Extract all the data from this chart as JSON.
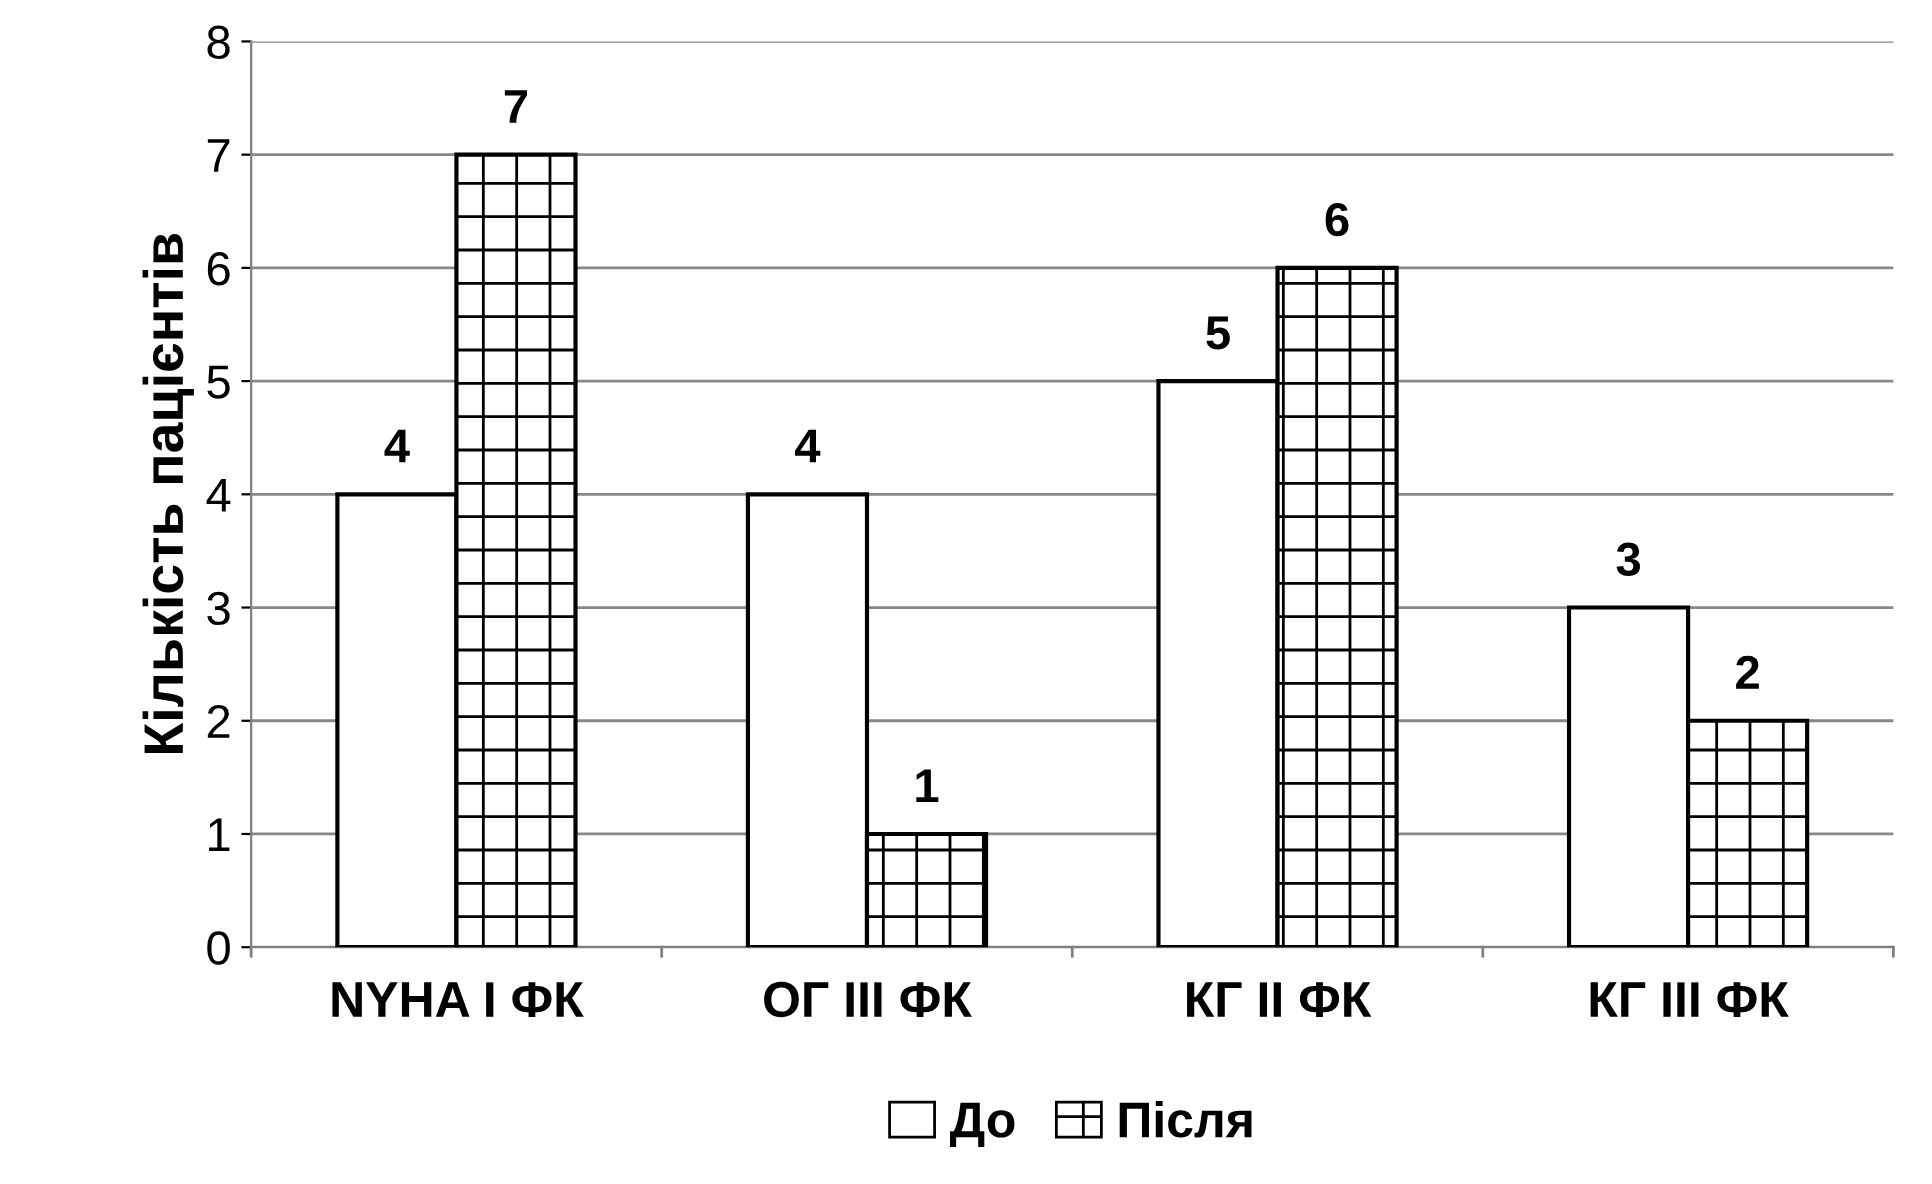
{
  "chart_data": {
    "type": "bar",
    "ylabel": "Кількість пацієнтів",
    "categories": [
      "NYHA I ФК",
      "ОГ III ФК",
      "КГ II ФК",
      "КГ III ФК"
    ],
    "series": [
      {
        "name": "До",
        "color": "#ffffff",
        "values": [
          4,
          4,
          5,
          3
        ]
      },
      {
        "name": "Після",
        "color": "#000000",
        "values": [
          7,
          1,
          6,
          2
        ]
      }
    ],
    "ylim": [
      0,
      8
    ],
    "yticks": [
      0,
      1,
      2,
      3,
      4,
      5,
      6,
      7,
      8
    ],
    "grid": "y",
    "legend": "bottom",
    "data_labels": true
  }
}
